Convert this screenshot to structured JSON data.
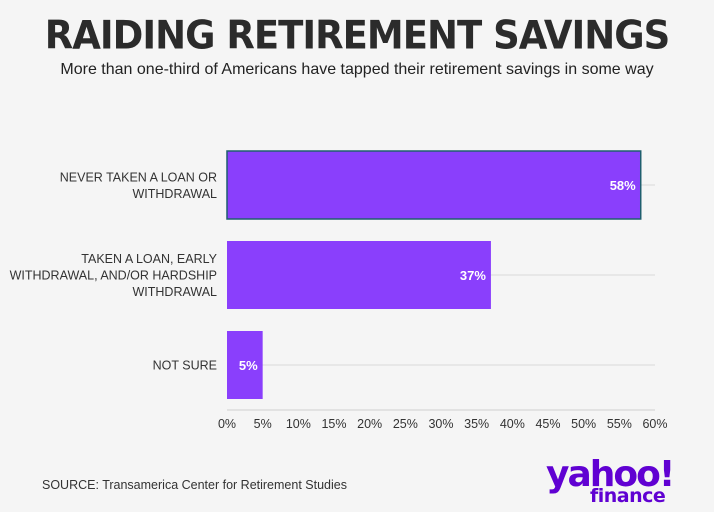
{
  "chart_data": {
    "type": "bar",
    "orientation": "horizontal",
    "title": "RAIDING RETIREMENT SAVINGS",
    "subtitle": "More than one-third of Americans have tapped their retirement savings in some way",
    "categories": [
      [
        "NEVER TAKEN A LOAN OR",
        "WITHDRAWAL"
      ],
      [
        "TAKEN A LOAN, EARLY",
        "WITHDRAWAL, AND/OR HARDSHIP",
        "WITHDRAWAL"
      ],
      [
        "NOT SURE"
      ]
    ],
    "values": [
      58,
      37,
      5
    ],
    "value_labels": [
      "58%",
      "37%",
      "5%"
    ],
    "xlim": [
      0,
      60
    ],
    "x_ticks": [
      0,
      5,
      10,
      15,
      20,
      25,
      30,
      35,
      40,
      45,
      50,
      55,
      60
    ],
    "x_tick_labels": [
      "0%",
      "5%",
      "10%",
      "15%",
      "20%",
      "25%",
      "30%",
      "35%",
      "40%",
      "45%",
      "50%",
      "55%",
      "60%"
    ],
    "bar_color": "#8a3ffc",
    "highlight_border_color": "#1f5f6e",
    "grid": true,
    "legend": "none"
  },
  "source": "SOURCE: Transamerica Center for Retirement Studies",
  "logo": {
    "word": "yahoo!",
    "sub": "finance",
    "color": "#6001d2"
  }
}
